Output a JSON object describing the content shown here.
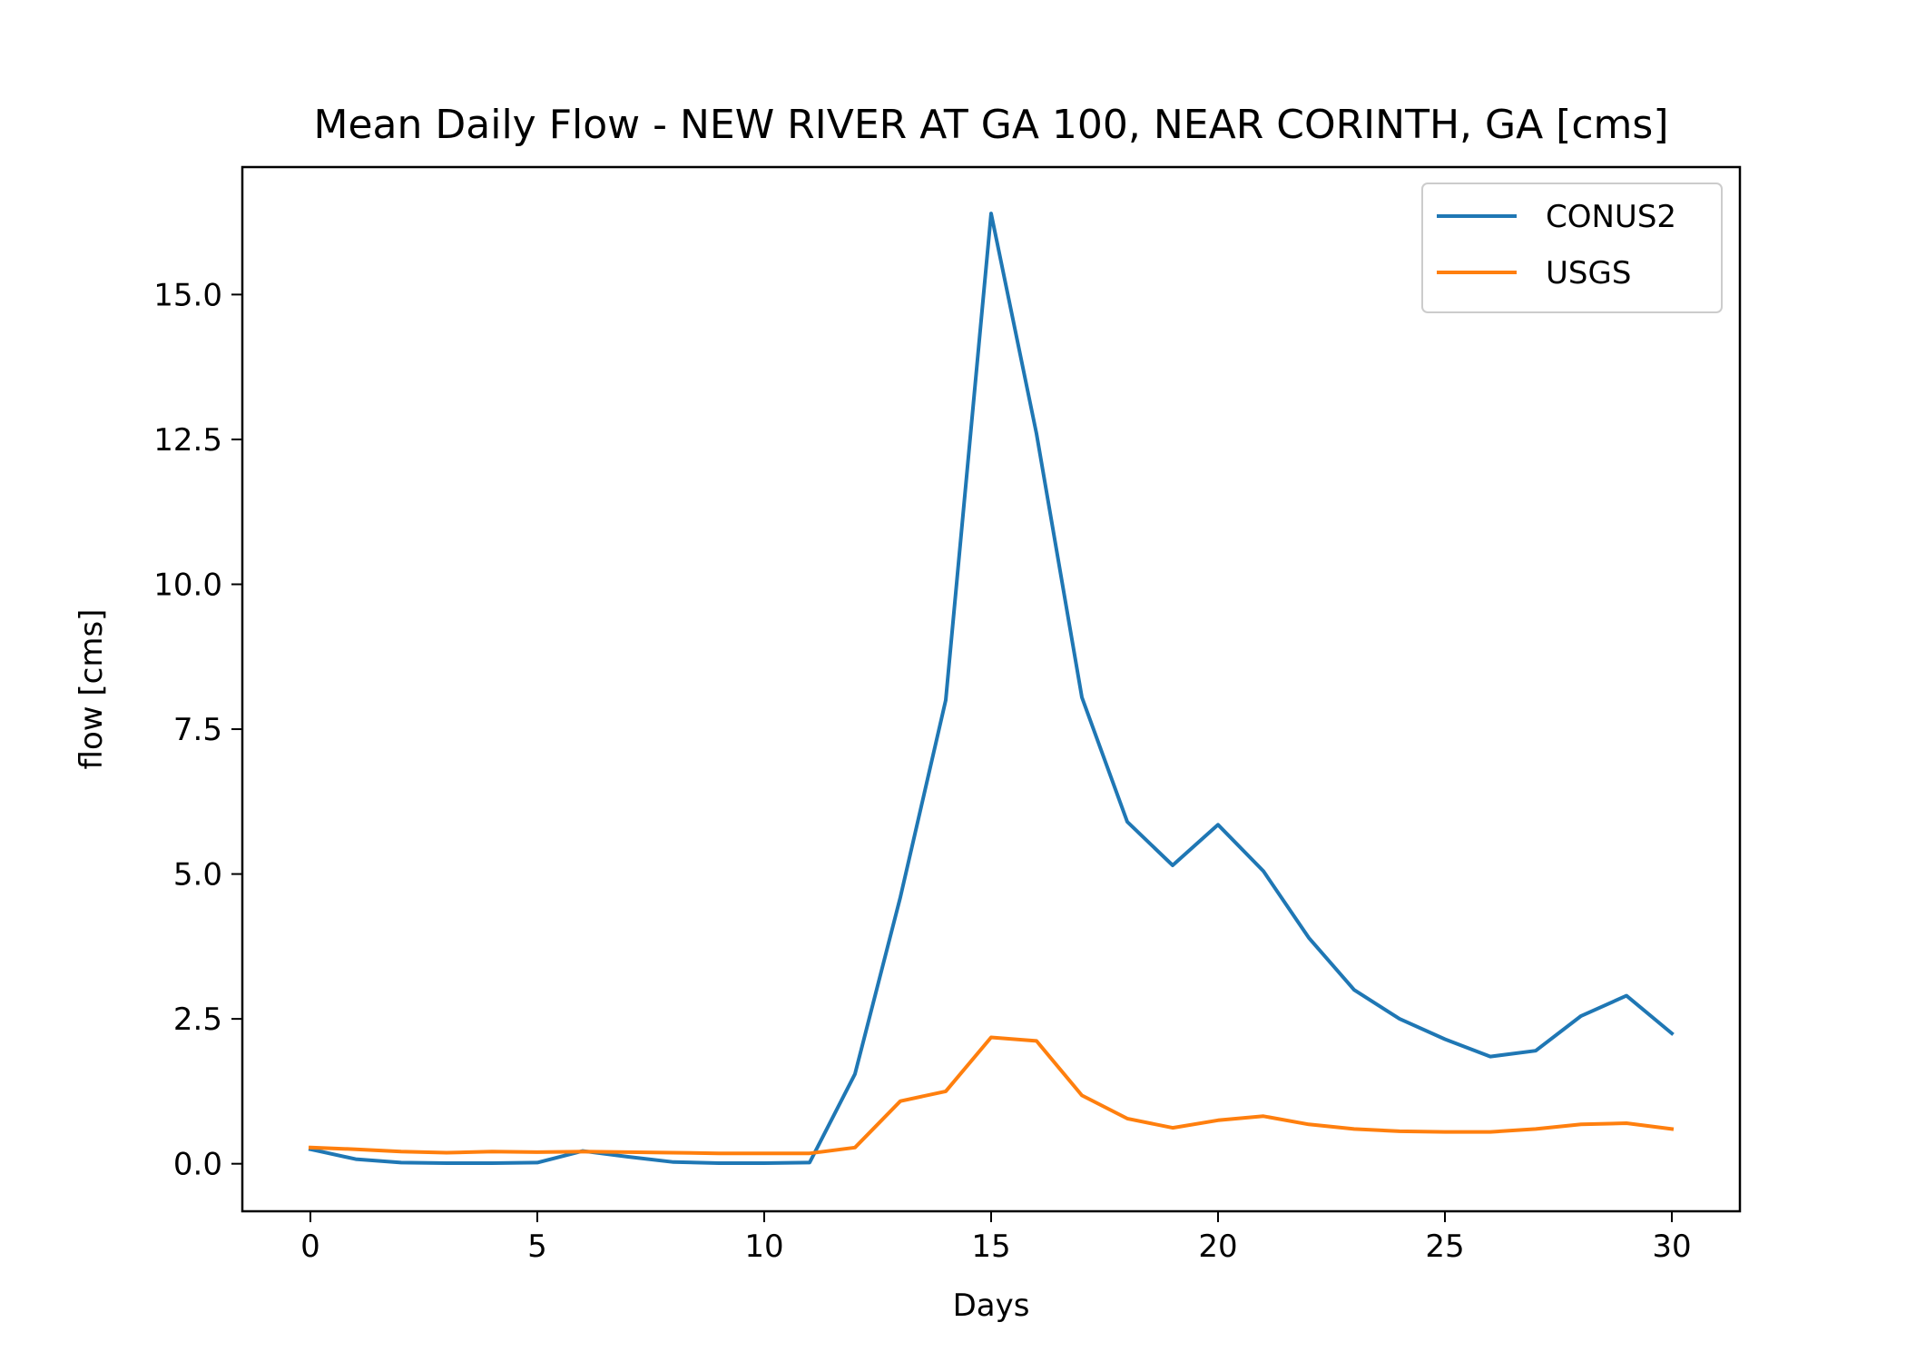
{
  "chart_data": {
    "type": "line",
    "title": "Mean Daily Flow - NEW RIVER AT GA 100, NEAR CORINTH, GA [cms]",
    "xlabel": "Days",
    "ylabel": "flow [cms]",
    "xlim": [
      -1.5,
      31.5
    ],
    "ylim": [
      -0.82,
      17.2
    ],
    "xticks": [
      0,
      5,
      10,
      15,
      20,
      25,
      30
    ],
    "xtick_labels": [
      "0",
      "5",
      "10",
      "15",
      "20",
      "25",
      "30"
    ],
    "yticks": [
      0.0,
      2.5,
      5.0,
      7.5,
      10.0,
      12.5,
      15.0
    ],
    "ytick_labels": [
      "0.0",
      "2.5",
      "5.0",
      "7.5",
      "10.0",
      "12.5",
      "15.0"
    ],
    "grid": false,
    "legend_position": "top-right",
    "x": [
      0,
      1,
      2,
      3,
      4,
      5,
      6,
      7,
      8,
      9,
      10,
      11,
      12,
      13,
      14,
      15,
      16,
      17,
      18,
      19,
      20,
      21,
      22,
      23,
      24,
      25,
      26,
      27,
      28,
      29,
      30
    ],
    "series": [
      {
        "name": "CONUS2",
        "color": "#1f77b4",
        "values": [
          0.25,
          0.08,
          0.02,
          0.01,
          0.01,
          0.02,
          0.22,
          0.12,
          0.03,
          0.01,
          0.01,
          0.02,
          1.55,
          4.6,
          8.0,
          16.4,
          12.6,
          8.05,
          5.9,
          5.15,
          5.85,
          5.05,
          3.9,
          3.0,
          2.5,
          2.15,
          1.85,
          1.95,
          2.55,
          2.9,
          2.25
        ]
      },
      {
        "name": "USGS",
        "color": "#ff7f0e",
        "values": [
          0.28,
          0.25,
          0.21,
          0.19,
          0.21,
          0.2,
          0.21,
          0.2,
          0.19,
          0.18,
          0.18,
          0.18,
          0.28,
          1.08,
          1.25,
          2.18,
          2.12,
          1.18,
          0.78,
          0.62,
          0.75,
          0.82,
          0.68,
          0.6,
          0.56,
          0.55,
          0.55,
          0.6,
          0.68,
          0.7,
          0.6
        ]
      }
    ]
  }
}
